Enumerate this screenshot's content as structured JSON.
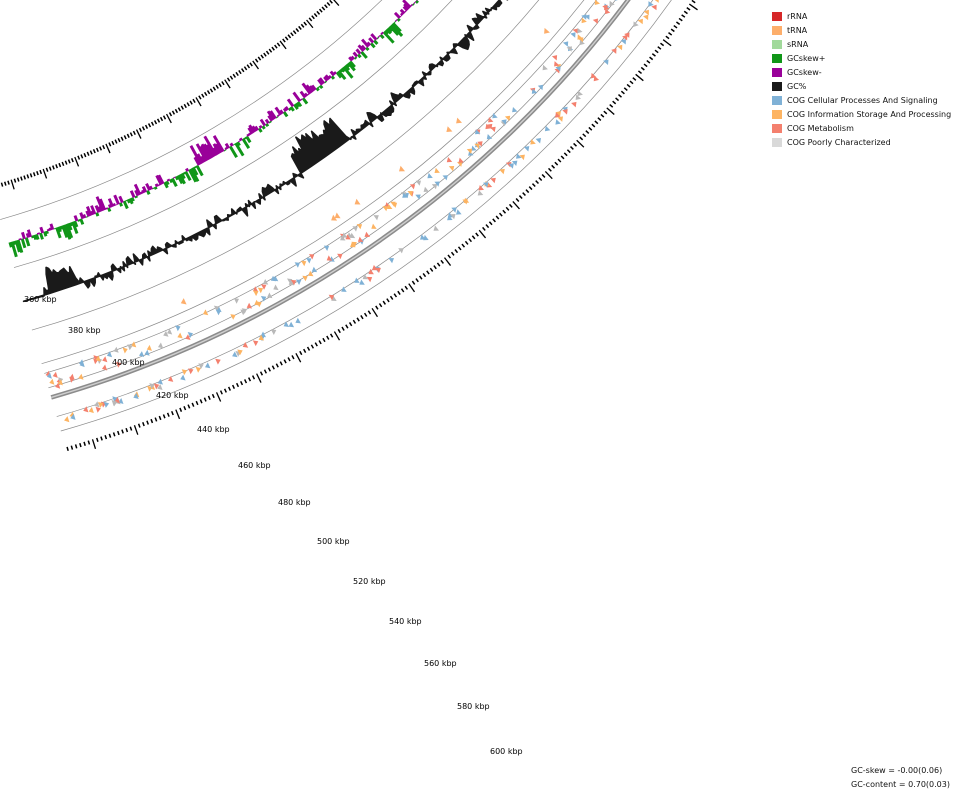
{
  "legend": [
    {
      "label": "rRNA",
      "color": "#d62728",
      "icon": "rrna-swatch"
    },
    {
      "label": "tRNA",
      "color": "#fdae6b",
      "icon": "trna-swatch"
    },
    {
      "label": "sRNA",
      "color": "#a1d99b",
      "icon": "srna-swatch"
    },
    {
      "label": "GCskew+",
      "color": "#109618",
      "icon": "gcskew-plus-swatch"
    },
    {
      "label": "GCskew-",
      "color": "#990099",
      "icon": "gcskew-minus-swatch"
    },
    {
      "label": "GC%",
      "color": "#1a1a1a",
      "icon": "gc-content-swatch"
    },
    {
      "label": "COG Cellular Processes And Signaling",
      "color": "#7fb1d6",
      "icon": "cog-cellular-swatch"
    },
    {
      "label": "COG Information Storage And Processing",
      "color": "#fdb462",
      "icon": "cog-information-swatch"
    },
    {
      "label": "COG Metabolism",
      "color": "#f4806e",
      "icon": "cog-metabolism-swatch"
    },
    {
      "label": "COG Poorly Characterized",
      "color": "#d9d9d9",
      "icon": "cog-poorly-swatch"
    }
  ],
  "positions": [
    "360 kbp",
    "380 kbp",
    "400 kbp",
    "420 kbp",
    "440 kbp",
    "460 kbp",
    "480 kbp",
    "500 kbp",
    "520 kbp",
    "540 kbp",
    "560 kbp",
    "580 kbp",
    "600 kbp"
  ],
  "stats": {
    "gc_skew": "GC-skew = -0.00(0.06)",
    "gc_content": "GC-content = 0.70(0.03)"
  }
}
